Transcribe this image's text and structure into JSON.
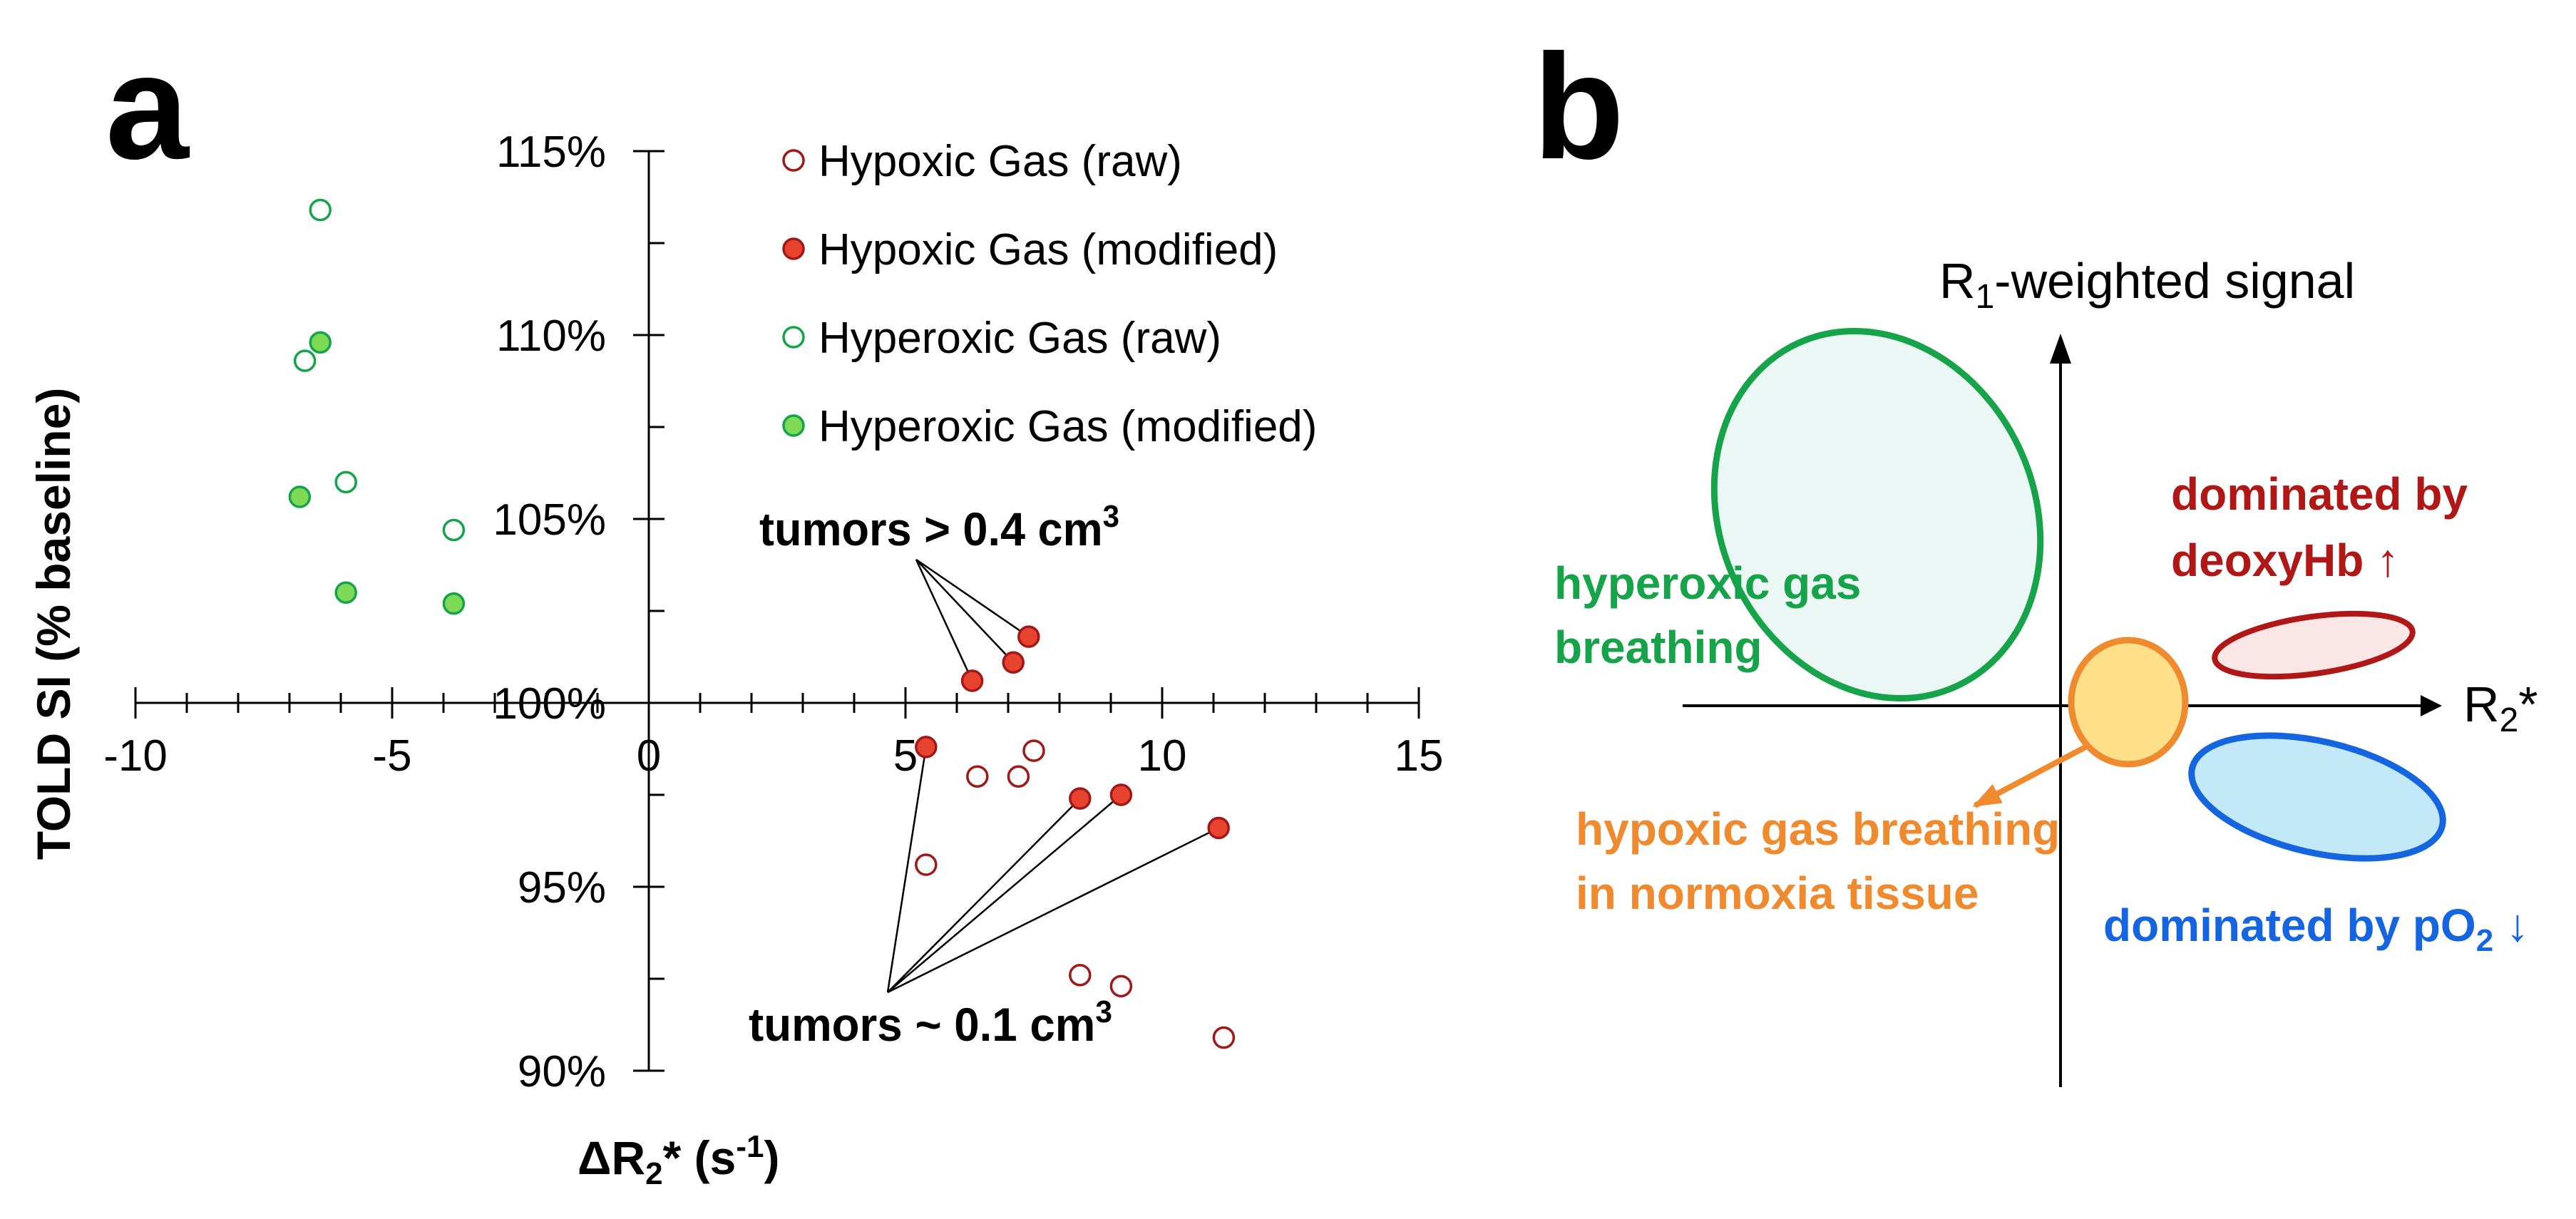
{
  "panel_a": {
    "letter": "a"
  },
  "panel_b": {
    "letter": "b"
  },
  "chart_data": {
    "type": "scatter",
    "title": "",
    "xlabel": "ΔR2* (s-1)",
    "xlabel_parts": {
      "main": "ΔR",
      "sub": "2",
      "mid": "* (s",
      "sup": "-1",
      "end": ")"
    },
    "ylabel": "TOLD SI (% baseline)",
    "xlim": [
      -10,
      15
    ],
    "ylim": [
      90,
      115
    ],
    "x_ticks": [
      {
        "value": -10,
        "label": "-10"
      },
      {
        "value": -5,
        "label": "-5"
      },
      {
        "value": 0,
        "label": "0"
      },
      {
        "value": 5,
        "label": "5"
      },
      {
        "value": 10,
        "label": "10"
      },
      {
        "value": 15,
        "label": "15"
      }
    ],
    "y_ticks": [
      {
        "value": 90,
        "label": "90%"
      },
      {
        "value": 95,
        "label": "95%"
      },
      {
        "value": 100,
        "label": "100%"
      },
      {
        "value": 105,
        "label": "105%"
      },
      {
        "value": 110,
        "label": "110%"
      },
      {
        "value": 115,
        "label": "115%"
      }
    ],
    "legend_position": "top-right",
    "grid": false,
    "colors": {
      "hypoxic": "#e8432e",
      "hypoxic_edge": "#a01818",
      "hyperoxic": "#7ed957",
      "hyperoxic_edge": "#16a34a"
    },
    "series": [
      {
        "name": "Hypoxic Gas (raw)",
        "marker": "open",
        "points": [
          {
            "x": 5.4,
            "y": 95.6
          },
          {
            "x": 6.4,
            "y": 98.0
          },
          {
            "x": 7.2,
            "y": 98.0
          },
          {
            "x": 7.5,
            "y": 98.7
          },
          {
            "x": 8.4,
            "y": 92.6
          },
          {
            "x": 9.2,
            "y": 92.3
          },
          {
            "x": 11.2,
            "y": 90.9
          }
        ]
      },
      {
        "name": "Hypoxic Gas (modified)",
        "marker": "filled",
        "points": [
          {
            "x": 5.4,
            "y": 98.8
          },
          {
            "x": 6.3,
            "y": 100.6
          },
          {
            "x": 7.1,
            "y": 101.1
          },
          {
            "x": 7.4,
            "y": 101.8
          },
          {
            "x": 8.4,
            "y": 97.4
          },
          {
            "x": 9.2,
            "y": 97.5
          },
          {
            "x": 11.1,
            "y": 96.6
          }
        ]
      },
      {
        "name": "Hyperoxic Gas (raw)",
        "marker": "open",
        "points": [
          {
            "x": -6.4,
            "y": 113.4
          },
          {
            "x": -6.7,
            "y": 109.3
          },
          {
            "x": -5.9,
            "y": 106.0
          },
          {
            "x": -3.8,
            "y": 104.7
          }
        ]
      },
      {
        "name": "Hyperoxic Gas (modified)",
        "marker": "filled",
        "points": [
          {
            "x": -6.4,
            "y": 109.8
          },
          {
            "x": -6.8,
            "y": 105.6
          },
          {
            "x": -5.9,
            "y": 103.0
          },
          {
            "x": -3.8,
            "y": 102.7
          }
        ]
      }
    ],
    "annotations": [
      {
        "text_main": "tumors > 0.4 cm",
        "text_sup": "3",
        "targets": [
          {
            "x": 6.3,
            "y": 100.6
          },
          {
            "x": 7.1,
            "y": 101.1
          },
          {
            "x": 7.4,
            "y": 101.8
          }
        ]
      },
      {
        "text_main": "tumors ~ 0.1 cm",
        "text_sup": "3",
        "targets": [
          {
            "x": 5.4,
            "y": 98.8
          },
          {
            "x": 8.4,
            "y": 97.4
          },
          {
            "x": 9.2,
            "y": 97.5
          },
          {
            "x": 11.1,
            "y": 96.6
          }
        ]
      }
    ]
  },
  "diagram": {
    "y_axis_label": {
      "main": "R",
      "sub": "1",
      "rest": "-weighted signal"
    },
    "x_axis_label": {
      "main": "R",
      "sub": "2",
      "rest": "*"
    },
    "regions": [
      {
        "id": "hyperoxic",
        "lines": [
          "hyperoxic gas",
          "breathing"
        ],
        "color": "#16a34a",
        "fill": "#eaf7f4"
      },
      {
        "id": "deoxyhb",
        "lines": [
          "dominated by",
          "deoxyHb ↑"
        ],
        "color": "#b01818",
        "fill": "#fbe6e6"
      },
      {
        "id": "po2",
        "text_main": "dominated by pO",
        "text_sub": "2",
        "text_end": " ↓",
        "color": "#1565e0",
        "fill": "#c3e8f7"
      },
      {
        "id": "normoxia",
        "lines": [
          "hypoxic gas breathing",
          "in normoxia tissue"
        ],
        "color": "#f08a2e",
        "fill": "#fde089"
      }
    ]
  }
}
